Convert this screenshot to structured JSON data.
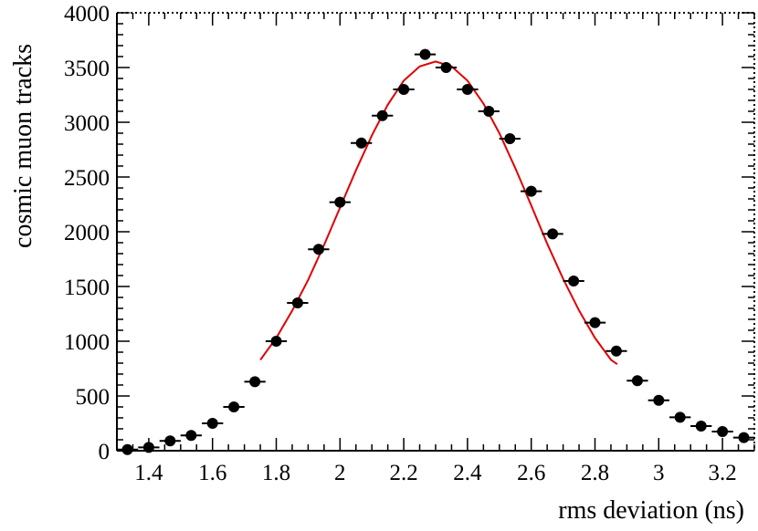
{
  "chart_data": {
    "type": "scatter",
    "xlabel": "rms deviation (ns)",
    "ylabel": "cosmic muon tracks",
    "xlim": [
      1.3,
      3.3
    ],
    "ylim": [
      0,
      4000
    ],
    "x_ticks": [
      1.4,
      1.6,
      1.8,
      2,
      2.2,
      2.4,
      2.6,
      2.8,
      3,
      3.2
    ],
    "y_ticks": [
      0,
      500,
      1000,
      1500,
      2000,
      2500,
      3000,
      3500,
      4000
    ],
    "bin_width": 0.0667,
    "grid": false,
    "marker_color": "#000000",
    "fit_color": "#e00000",
    "points": {
      "x": [
        1.333,
        1.4,
        1.467,
        1.533,
        1.6,
        1.667,
        1.733,
        1.8,
        1.867,
        1.933,
        2.0,
        2.067,
        2.133,
        2.2,
        2.267,
        2.333,
        2.4,
        2.467,
        2.533,
        2.6,
        2.667,
        2.733,
        2.8,
        2.867,
        2.933,
        3.0,
        3.067,
        3.133,
        3.2,
        3.267
      ],
      "y": [
        10,
        30,
        90,
        140,
        250,
        400,
        630,
        1000,
        1350,
        1840,
        2270,
        2810,
        3060,
        3300,
        3620,
        3500,
        3300,
        3100,
        2850,
        2370,
        1980,
        1550,
        1170,
        910,
        640,
        460,
        305,
        225,
        175,
        120
      ]
    },
    "fit": {
      "x": [
        1.75,
        1.8,
        1.85,
        1.9,
        1.95,
        2.0,
        2.05,
        2.1,
        2.15,
        2.2,
        2.25,
        2.3,
        2.35,
        2.4,
        2.45,
        2.5,
        2.55,
        2.6,
        2.65,
        2.7,
        2.75,
        2.8,
        2.85,
        2.87
      ],
      "y": [
        830,
        1030,
        1280,
        1560,
        1880,
        2220,
        2560,
        2880,
        3160,
        3380,
        3510,
        3555,
        3510,
        3380,
        3170,
        2900,
        2580,
        2240,
        1890,
        1570,
        1280,
        1030,
        830,
        790
      ]
    }
  }
}
